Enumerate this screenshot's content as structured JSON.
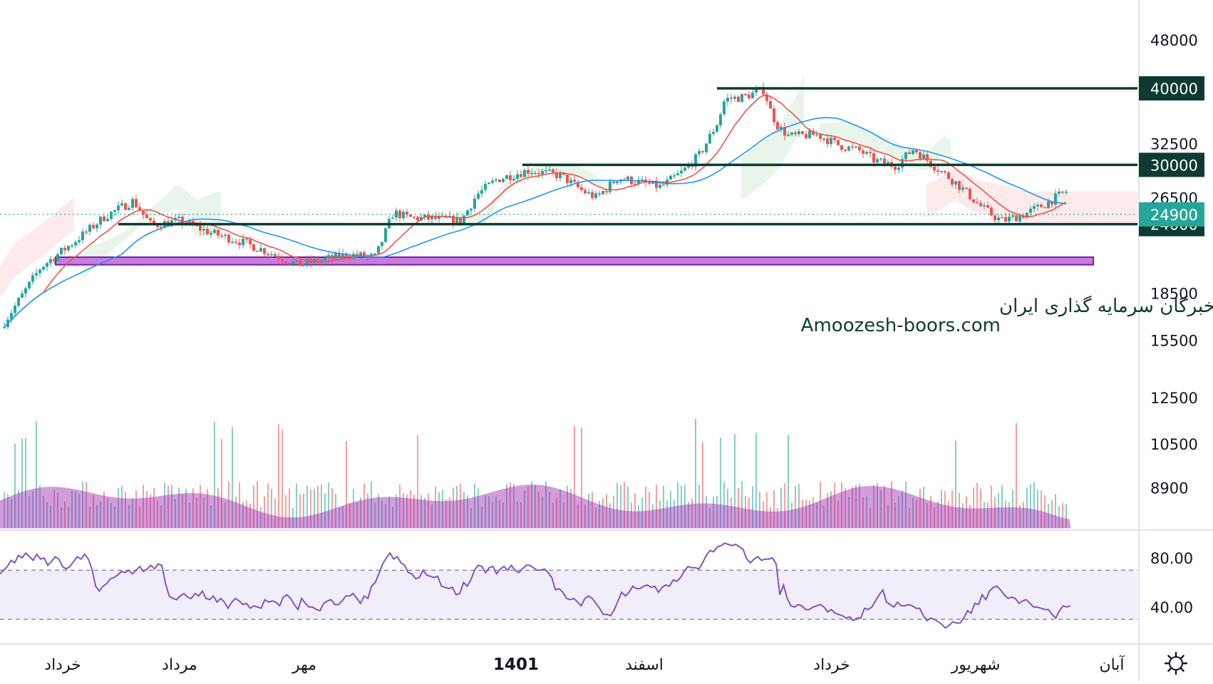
{
  "chart_data": {
    "type": "candlestick",
    "price_axis": {
      "ticks": [
        {
          "value": 48000,
          "label": "48000"
        },
        {
          "value": 32500,
          "label": "32500"
        },
        {
          "value": 26500,
          "label": "26500"
        },
        {
          "value": 18500,
          "label": "18500"
        },
        {
          "value": 15500,
          "label": "15500"
        },
        {
          "value": 12500,
          "label": "12500"
        },
        {
          "value": 10500,
          "label": "10500"
        },
        {
          "value": 8900,
          "label": "8900"
        }
      ],
      "scale": "log"
    },
    "levels": [
      {
        "value": 40000,
        "label": "40000"
      },
      {
        "value": 30000,
        "label": "30000"
      },
      {
        "value": 24000,
        "label": "24000"
      }
    ],
    "current_price": {
      "value": 24900,
      "label": "24900",
      "color": "#26a69a"
    },
    "support_zone": {
      "from": 20600,
      "to": 21200,
      "color": "#c77ddb"
    },
    "rsi": {
      "ticks": [
        {
          "value": 80,
          "label": "80.00"
        },
        {
          "value": 40,
          "label": "40.00"
        }
      ],
      "band": [
        30,
        70
      ],
      "values": [
        67,
        70,
        73,
        78,
        76,
        82,
        80,
        84,
        81,
        78,
        83,
        79,
        80,
        74,
        77,
        81,
        79,
        73,
        71,
        73,
        77,
        81,
        79,
        83,
        79,
        71,
        57,
        53,
        57,
        59,
        63,
        64,
        66,
        69,
        68,
        70,
        67,
        70,
        73,
        69,
        71,
        74,
        71,
        75,
        74,
        59,
        49,
        47,
        46,
        49,
        51,
        48,
        47,
        51,
        49,
        53,
        47,
        46,
        49,
        44,
        47,
        44,
        39,
        44,
        47,
        45,
        42,
        43,
        39,
        41,
        40,
        39,
        46,
        44,
        45,
        44,
        41,
        48,
        50,
        47,
        42,
        38,
        47,
        43,
        40,
        40,
        38,
        37,
        43,
        45,
        46,
        42,
        42,
        45,
        49,
        49,
        51,
        47,
        43,
        49,
        47,
        57,
        60,
        67,
        75,
        80,
        84,
        79,
        81,
        76,
        74,
        68,
        67,
        63,
        64,
        70,
        66,
        65,
        64,
        65,
        57,
        56,
        55,
        56,
        50,
        51,
        60,
        57,
        62,
        70,
        74,
        73,
        68,
        72,
        73,
        67,
        71,
        73,
        70,
        74,
        70,
        68,
        71,
        74,
        74,
        72,
        70,
        70,
        71,
        68,
        64,
        54,
        55,
        52,
        47,
        46,
        47,
        44,
        41,
        47,
        49,
        47,
        43,
        39,
        34,
        34,
        33,
        38,
        45,
        52,
        49,
        52,
        57,
        55,
        55,
        57,
        58,
        56,
        57,
        52,
        56,
        58,
        57,
        62,
        61,
        64,
        69,
        73,
        72,
        72,
        71,
        76,
        82,
        86,
        85,
        89,
        90,
        92,
        91,
        90,
        91,
        89,
        87,
        79,
        76,
        79,
        81,
        78,
        79,
        79,
        80,
        75,
        50,
        58,
        47,
        41,
        40,
        42,
        41,
        38,
        38,
        40,
        41,
        42,
        40,
        36,
        38,
        35,
        34,
        33,
        31,
        32,
        29,
        31,
        31,
        39,
        38,
        40,
        45,
        50,
        54,
        44,
        42,
        40,
        44,
        41,
        41,
        42,
        41,
        39,
        39,
        33,
        29,
        31,
        30,
        28,
        26,
        23,
        25,
        28,
        27,
        27,
        31,
        37,
        35,
        43,
        42,
        50,
        46,
        53,
        56,
        57,
        54,
        50,
        47,
        48,
        47,
        43,
        45,
        46,
        43,
        40,
        40,
        39,
        38,
        38,
        34,
        31,
        37,
        41,
        40,
        41
      ]
    },
    "time_axis": [
      {
        "label": "خرداد",
        "bold": false
      },
      {
        "label": "مرداد",
        "bold": false
      },
      {
        "label": "مهر",
        "bold": false
      },
      {
        "label": "1401",
        "bold": true
      },
      {
        "label": "اسفند",
        "bold": false
      },
      {
        "label": "خرداد",
        "bold": false
      },
      {
        "label": "شهریور",
        "bold": false
      },
      {
        "label": "آبان",
        "bold": false
      }
    ],
    "colors": {
      "up": "#26a69a",
      "down": "#ef5350",
      "ma_fast": "#ef5350",
      "ma_slow": "#2196f3",
      "volume_ma": "#9c27b0",
      "rsi_line": "#7e57c2",
      "level_line": "#0d3b33"
    },
    "watermark": {
      "line1": "انجمن خبرگان سرمایه گذاری ایران",
      "line2": "Amoozesh-boors.com"
    },
    "settings_icon": "gear-icon"
  }
}
